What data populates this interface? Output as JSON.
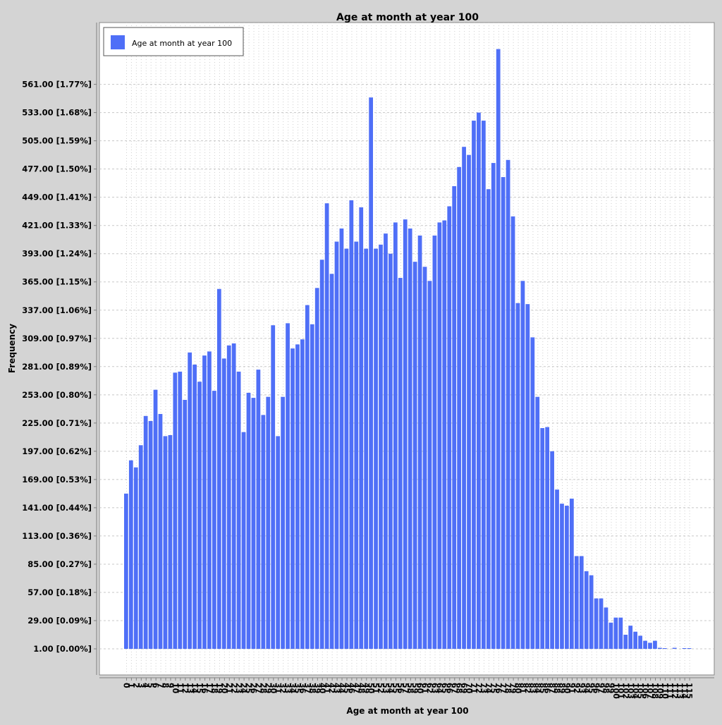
{
  "chart_data": {
    "type": "bar",
    "title": "Age at month at year 100",
    "xlabel": "Age at month at year 100",
    "ylabel": "Frequency",
    "legend": {
      "position": "top-left",
      "entries": [
        "Age at month at year 100"
      ]
    },
    "grid": true,
    "bar_color": "#4f6ff7",
    "x_start": 0,
    "ylim": [
      1,
      595
    ],
    "y_ticks": [
      {
        "value": 1,
        "label": "1.00 [0.00%]"
      },
      {
        "value": 29,
        "label": "29.00 [0.09%]"
      },
      {
        "value": 57,
        "label": "57.00 [0.18%]"
      },
      {
        "value": 85,
        "label": "85.00 [0.27%]"
      },
      {
        "value": 113,
        "label": "113.00 [0.36%]"
      },
      {
        "value": 141,
        "label": "141.00 [0.44%]"
      },
      {
        "value": 169,
        "label": "169.00 [0.53%]"
      },
      {
        "value": 197,
        "label": "197.00 [0.62%]"
      },
      {
        "value": 225,
        "label": "225.00 [0.71%]"
      },
      {
        "value": 253,
        "label": "253.00 [0.80%]"
      },
      {
        "value": 281,
        "label": "281.00 [0.89%]"
      },
      {
        "value": 309,
        "label": "309.00 [0.97%]"
      },
      {
        "value": 337,
        "label": "337.00 [1.06%]"
      },
      {
        "value": 365,
        "label": "365.00 [1.15%]"
      },
      {
        "value": 393,
        "label": "393.00 [1.24%]"
      },
      {
        "value": 421,
        "label": "421.00 [1.33%]"
      },
      {
        "value": 449,
        "label": "449.00 [1.41%]"
      },
      {
        "value": 477,
        "label": "477.00 [1.50%]"
      },
      {
        "value": 505,
        "label": "505.00 [1.59%]"
      },
      {
        "value": 533,
        "label": "533.00 [1.68%]"
      },
      {
        "value": 561,
        "label": "561.00 [1.77%]"
      }
    ],
    "values": [
      155,
      188,
      181,
      203,
      232,
      227,
      258,
      234,
      212,
      213,
      275,
      276,
      248,
      295,
      283,
      266,
      292,
      296,
      257,
      358,
      289,
      302,
      304,
      276,
      216,
      255,
      250,
      278,
      233,
      251,
      322,
      212,
      251,
      324,
      299,
      303,
      308,
      342,
      323,
      359,
      387,
      443,
      373,
      405,
      418,
      398,
      446,
      405,
      439,
      398,
      548,
      398,
      402,
      413,
      393,
      424,
      369,
      427,
      418,
      385,
      411,
      380,
      366,
      411,
      424,
      426,
      440,
      460,
      479,
      499,
      491,
      525,
      533,
      525,
      457,
      483,
      596,
      469,
      486,
      430,
      344,
      366,
      343,
      310,
      251,
      220,
      221,
      197,
      159,
      145,
      143,
      150,
      93,
      93,
      78,
      74,
      51,
      51,
      42,
      27,
      32,
      32,
      15,
      24,
      18,
      14,
      9,
      7,
      9,
      2,
      1,
      0,
      2,
      0,
      1,
      1
    ],
    "x_ticks": [
      "0",
      "1",
      "2",
      "3",
      "4",
      "5",
      "6",
      "7",
      "8",
      "9",
      "10",
      "11",
      "12",
      "13",
      "14",
      "15",
      "16",
      "17",
      "18",
      "19",
      "20",
      "21",
      "22",
      "23",
      "24",
      "25",
      "26",
      "27",
      "28",
      "29",
      "30",
      "31",
      "32",
      "33",
      "34",
      "35",
      "36",
      "37",
      "38",
      "39",
      "40",
      "41",
      "42",
      "43",
      "44",
      "45",
      "46",
      "47",
      "48",
      "49",
      "50",
      "51",
      "52",
      "53",
      "54",
      "55",
      "56",
      "57",
      "58",
      "59",
      "60",
      "61",
      "62",
      "63",
      "64",
      "65",
      "66",
      "67",
      "68",
      "69",
      "70",
      "71",
      "72",
      "73",
      "74",
      "75",
      "76",
      "77",
      "78",
      "79",
      "80",
      "81",
      "82",
      "83",
      "84",
      "85",
      "86",
      "87",
      "88",
      "89",
      "90",
      "91",
      "92",
      "93",
      "94",
      "95",
      "96",
      "97",
      "98",
      "99",
      "100",
      "101",
      "102",
      "103",
      "104",
      "105",
      "106",
      "107",
      "108",
      "109",
      "110",
      "111",
      "112",
      "113",
      "114",
      "115"
    ]
  }
}
